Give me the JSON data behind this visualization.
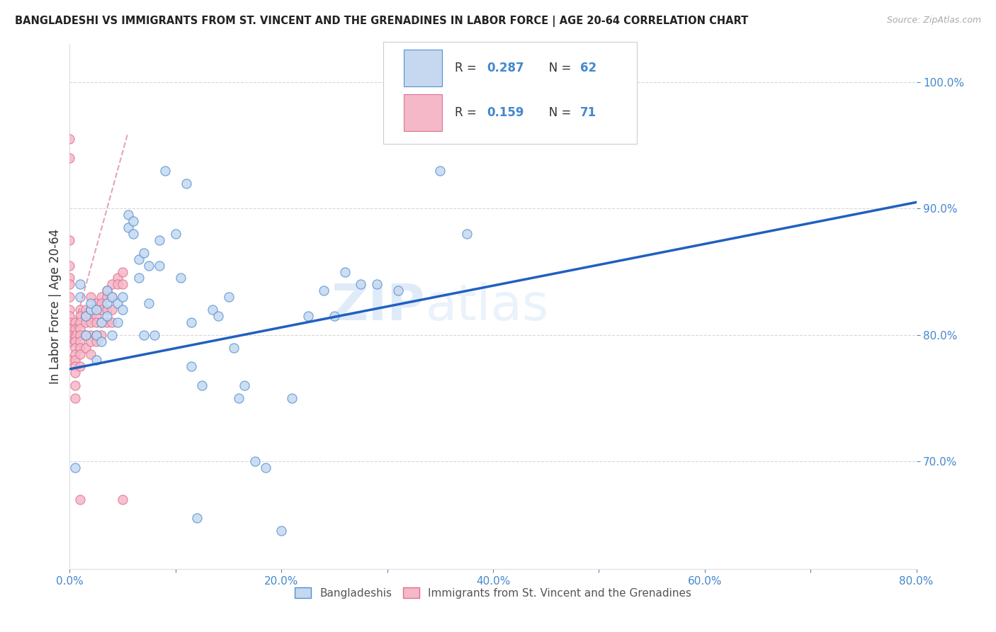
{
  "title": "BANGLADESHI VS IMMIGRANTS FROM ST. VINCENT AND THE GRENADINES IN LABOR FORCE | AGE 20-64 CORRELATION CHART",
  "source": "Source: ZipAtlas.com",
  "ylabel": "In Labor Force | Age 20-64",
  "legend_blue_label": "Bangladeshis",
  "legend_pink_label": "Immigrants from St. Vincent and the Grenadines",
  "xlim": [
    0.0,
    0.8
  ],
  "ylim": [
    0.615,
    1.03
  ],
  "xtick_labels": [
    "0.0%",
    "",
    "20.0%",
    "",
    "40.0%",
    "",
    "60.0%",
    "",
    "80.0%"
  ],
  "xtick_values": [
    0.0,
    0.1,
    0.2,
    0.3,
    0.4,
    0.5,
    0.6,
    0.7,
    0.8
  ],
  "ytick_labels": [
    "70.0%",
    "80.0%",
    "90.0%",
    "100.0%"
  ],
  "ytick_values": [
    0.7,
    0.8,
    0.9,
    1.0
  ],
  "blue_fill": "#c5d8f0",
  "blue_edge": "#5090d0",
  "pink_fill": "#f5b8c8",
  "pink_edge": "#e07090",
  "blue_line_color": "#2060c0",
  "pink_line_color": "#e090a0",
  "axis_color": "#4488cc",
  "text_color": "#4488cc",
  "watermark": "ZIPatlas",
  "watermark_color": "#ddeeff",
  "blue_scatter_x": [
    0.005,
    0.01,
    0.01,
    0.015,
    0.015,
    0.02,
    0.02,
    0.025,
    0.025,
    0.025,
    0.03,
    0.03,
    0.035,
    0.035,
    0.035,
    0.04,
    0.04,
    0.045,
    0.045,
    0.05,
    0.05,
    0.055,
    0.055,
    0.06,
    0.06,
    0.065,
    0.065,
    0.07,
    0.07,
    0.075,
    0.075,
    0.08,
    0.085,
    0.085,
    0.09,
    0.1,
    0.105,
    0.11,
    0.115,
    0.115,
    0.12,
    0.125,
    0.135,
    0.14,
    0.15,
    0.155,
    0.16,
    0.165,
    0.175,
    0.185,
    0.2,
    0.21,
    0.225,
    0.24,
    0.25,
    0.26,
    0.275,
    0.29,
    0.31,
    0.325,
    0.35,
    0.375
  ],
  "blue_scatter_y": [
    0.695,
    0.83,
    0.84,
    0.8,
    0.815,
    0.82,
    0.825,
    0.78,
    0.8,
    0.82,
    0.795,
    0.81,
    0.835,
    0.815,
    0.825,
    0.8,
    0.83,
    0.81,
    0.825,
    0.82,
    0.83,
    0.895,
    0.885,
    0.88,
    0.89,
    0.86,
    0.845,
    0.8,
    0.865,
    0.855,
    0.825,
    0.8,
    0.855,
    0.875,
    0.93,
    0.88,
    0.845,
    0.92,
    0.775,
    0.81,
    0.655,
    0.76,
    0.82,
    0.815,
    0.83,
    0.79,
    0.75,
    0.76,
    0.7,
    0.695,
    0.645,
    0.75,
    0.815,
    0.835,
    0.815,
    0.85,
    0.84,
    0.84,
    0.835,
    1.0,
    0.93,
    0.88
  ],
  "pink_scatter_x": [
    0.0,
    0.0,
    0.0,
    0.0,
    0.0,
    0.0,
    0.0,
    0.0,
    0.0,
    0.0,
    0.0,
    0.0,
    0.0,
    0.0,
    0.005,
    0.005,
    0.005,
    0.005,
    0.005,
    0.005,
    0.005,
    0.005,
    0.005,
    0.005,
    0.005,
    0.01,
    0.01,
    0.01,
    0.01,
    0.01,
    0.01,
    0.01,
    0.01,
    0.01,
    0.01,
    0.015,
    0.015,
    0.015,
    0.015,
    0.015,
    0.02,
    0.02,
    0.02,
    0.02,
    0.02,
    0.02,
    0.02,
    0.025,
    0.025,
    0.025,
    0.025,
    0.025,
    0.025,
    0.03,
    0.03,
    0.03,
    0.03,
    0.03,
    0.035,
    0.035,
    0.035,
    0.035,
    0.04,
    0.04,
    0.04,
    0.04,
    0.045,
    0.045,
    0.05,
    0.05,
    0.05
  ],
  "pink_scatter_y": [
    0.955,
    0.94,
    0.875,
    0.855,
    0.845,
    0.84,
    0.83,
    0.82,
    0.815,
    0.81,
    0.805,
    0.8,
    0.795,
    0.78,
    0.81,
    0.805,
    0.8,
    0.795,
    0.79,
    0.785,
    0.78,
    0.775,
    0.77,
    0.76,
    0.75,
    0.82,
    0.815,
    0.81,
    0.805,
    0.8,
    0.795,
    0.79,
    0.785,
    0.775,
    0.67,
    0.82,
    0.815,
    0.81,
    0.8,
    0.79,
    0.83,
    0.82,
    0.815,
    0.81,
    0.8,
    0.795,
    0.785,
    0.825,
    0.82,
    0.815,
    0.81,
    0.8,
    0.795,
    0.83,
    0.825,
    0.82,
    0.81,
    0.8,
    0.835,
    0.83,
    0.82,
    0.81,
    0.84,
    0.83,
    0.82,
    0.81,
    0.845,
    0.84,
    0.85,
    0.84,
    0.67
  ],
  "blue_line_x0": 0.0,
  "blue_line_x1": 0.8,
  "blue_line_y0": 0.773,
  "blue_line_y1": 0.905,
  "pink_line_x0": 0.0,
  "pink_line_x1": 0.055,
  "pink_line_y0": 0.793,
  "pink_line_y1": 0.96,
  "background_color": "#ffffff",
  "grid_color": "#d8d8d8"
}
